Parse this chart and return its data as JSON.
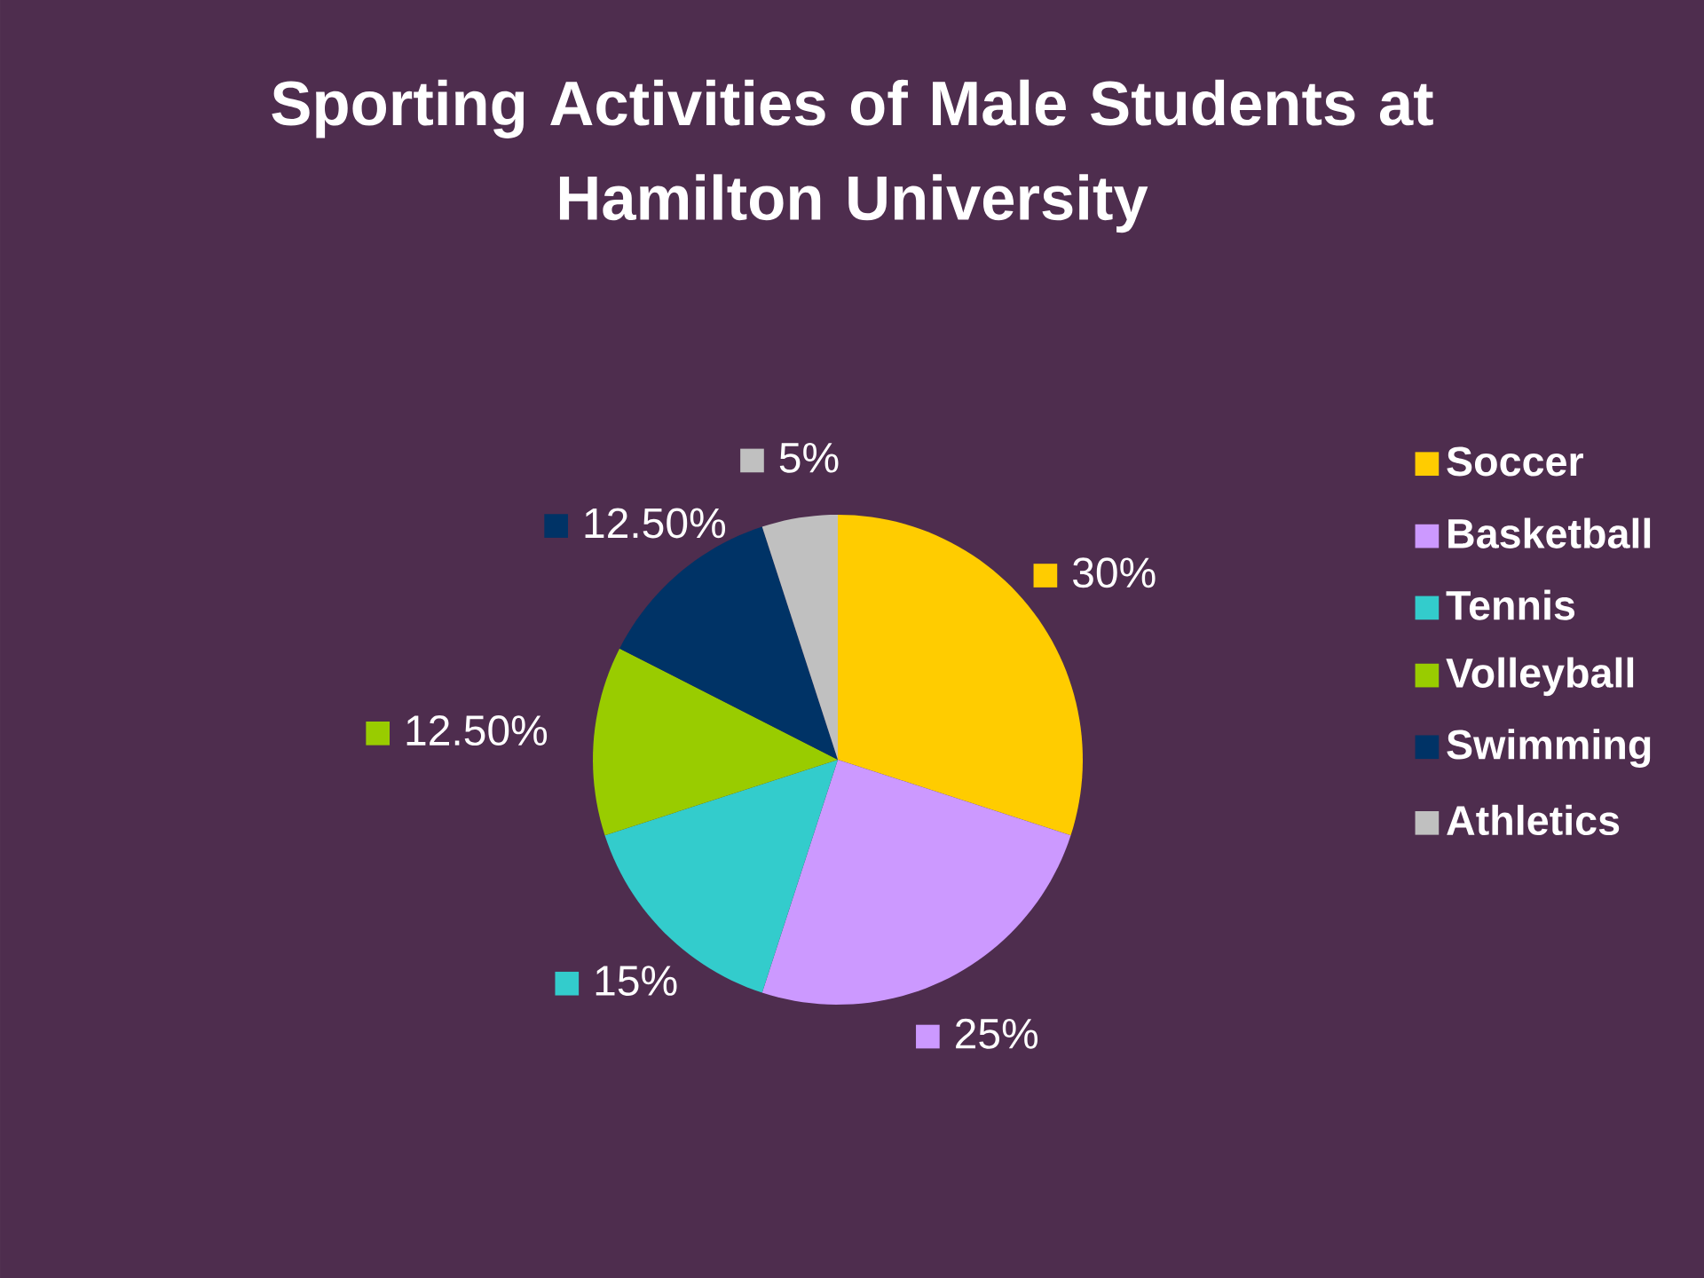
{
  "chart_data": {
    "type": "pie",
    "title": "Sporting Activities of Male Students at Hamilton University",
    "categories": [
      "Soccer",
      "Basketball",
      "Tennis",
      "Volleyball",
      "Swimming",
      "Athletics"
    ],
    "values": [
      30,
      25,
      15,
      12.5,
      12.5,
      5
    ],
    "colors": [
      "#ffcc00",
      "#cc99ff",
      "#33cccc",
      "#99cc00",
      "#003366",
      "#c0c0c0"
    ],
    "value_labels": [
      "30%",
      "25%",
      "15%",
      "12.50%",
      "12.50%",
      "5%"
    ],
    "legend": "right"
  }
}
